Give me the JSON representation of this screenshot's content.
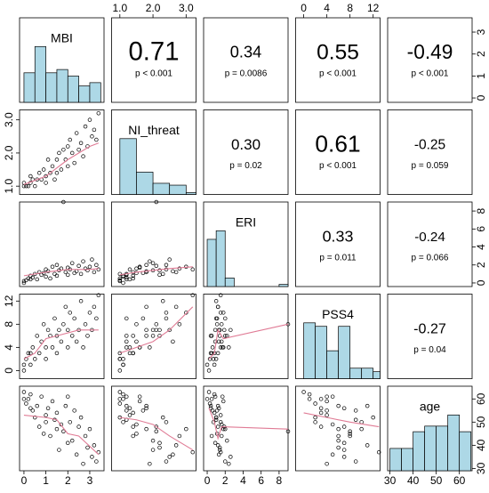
{
  "chart_data": {
    "type": "pairs",
    "hist_color": "#add8e6",
    "smooth_color": "#e07b95",
    "variables": [
      {
        "name": "MBI",
        "lim": [
          -0.2,
          3.65
        ],
        "ticks": [
          0,
          1,
          2,
          3
        ],
        "hist": {
          "bins": [
            0,
            0.5,
            1,
            1.5,
            2,
            2.5,
            3,
            3.5
          ],
          "counts": [
            9,
            17,
            9,
            10,
            8,
            5,
            6
          ]
        },
        "values": [
          0.1,
          0.2,
          0.3,
          0.4,
          0.5,
          0.6,
          0.7,
          0.8,
          0.9,
          1.0,
          1.0,
          1.1,
          1.2,
          1.3,
          1.4,
          1.5,
          1.5,
          1.6,
          1.7,
          1.8,
          1.9,
          2.0,
          2.0,
          2.1,
          2.2,
          2.3,
          2.4,
          2.5,
          2.6,
          2.7,
          2.8,
          2.9,
          3.0,
          3.1,
          3.2,
          3.3,
          3.4,
          0.0,
          0.0,
          0.3
        ]
      },
      {
        "name": "NI_threat",
        "lim": [
          0.75,
          3.3
        ],
        "ticks": [
          {
            "value": 1,
            "label": "1.0"
          },
          {
            "value": 2,
            "label": "2.0"
          },
          {
            "value": 3,
            "label": "3.0"
          }
        ],
        "hist": {
          "bins": [
            1,
            1.5,
            2,
            2.5,
            3,
            3.5
          ],
          "counts": [
            30,
            12,
            6,
            5,
            1
          ]
        },
        "values": [
          1.0,
          1.0,
          1.1,
          1.2,
          1.0,
          1.2,
          1.4,
          1.2,
          1.5,
          1.3,
          1.1,
          1.8,
          1.4,
          1.6,
          1.2,
          1.8,
          1.4,
          2.0,
          1.5,
          2.1,
          1.8,
          2.2,
          1.6,
          2.4,
          2.0,
          1.7,
          2.6,
          2.1,
          2.3,
          1.9,
          2.8,
          2.2,
          3.0,
          2.5,
          2.7,
          2.4,
          3.2,
          1.0,
          1.1,
          1.3
        ]
      },
      {
        "name": "ERI",
        "lim": [
          -0.4,
          9.0
        ],
        "ticks": [
          0,
          2,
          4,
          6,
          8
        ],
        "hist": {
          "bins": [
            0,
            1,
            2,
            3,
            4,
            5,
            6,
            7,
            8,
            9
          ],
          "counts": [
            22,
            26,
            4,
            0,
            0,
            0,
            0,
            0,
            1
          ]
        },
        "values": [
          0.3,
          0.5,
          0.8,
          0.6,
          1.0,
          0.4,
          1.2,
          0.9,
          1.1,
          1.5,
          0.7,
          1.3,
          0.5,
          1.8,
          1.0,
          2.0,
          0.8,
          1.4,
          1.6,
          9.0,
          1.2,
          0.9,
          1.7,
          1.5,
          2.2,
          1.1,
          1.3,
          1.9,
          1.0,
          2.4,
          1.6,
          1.4,
          1.8,
          2.6,
          1.2,
          2.0,
          1.5,
          0.2,
          0.0,
          0.4
        ]
      },
      {
        "name": "PSS4",
        "lim": [
          -1.4,
          13.2
        ],
        "ticks": [
          0,
          4,
          8,
          12
        ],
        "hist": {
          "bins": [
            0,
            2,
            4,
            6,
            8,
            10,
            12,
            14
          ],
          "counts": [
            16,
            15,
            8,
            15,
            3,
            3,
            2
          ]
        },
        "values": [
          2,
          3,
          1,
          4,
          2,
          6,
          3,
          5,
          8,
          4,
          2,
          7,
          6,
          4,
          9,
          6,
          3,
          7,
          5,
          8,
          11,
          7,
          4,
          10,
          6,
          9,
          5,
          7,
          12,
          4,
          8,
          6,
          10,
          7,
          11,
          9,
          13,
          0,
          1,
          3
        ]
      },
      {
        "name": "age",
        "lim": [
          29,
          65.5
        ],
        "ticks": [
          30,
          40,
          50,
          60
        ],
        "hist": {
          "bins": [
            30,
            35,
            40,
            45,
            50,
            55,
            60,
            65
          ],
          "counts": [
            4,
            4,
            7,
            8,
            8,
            10,
            7
          ]
        },
        "values": [
          58,
          60,
          62,
          55,
          52,
          57,
          48,
          61,
          45,
          53,
          50,
          56,
          44,
          59,
          51,
          47,
          54,
          38,
          49,
          46,
          57,
          41,
          61,
          50,
          42,
          55,
          36,
          48,
          52,
          32,
          44,
          39,
          47,
          35,
          40,
          33,
          37,
          63,
          60,
          56
        ]
      }
    ],
    "correlations": [
      [
        {
          "r": {
            "value": 0.71,
            "label": "0.71"
          },
          "p": "p < 0.001"
        },
        {
          "r": {
            "value": 0.34,
            "label": "0.34"
          },
          "p": "p = 0.0086"
        },
        {
          "r": {
            "value": 0.55,
            "label": "0.55"
          },
          "p": "p < 0.001"
        },
        {
          "r": {
            "value": -0.49,
            "label": "-0.49"
          },
          "p": "p < 0.001"
        }
      ],
      [
        {
          "r": {
            "value": 0.3,
            "label": "0.30"
          },
          "p": "p = 0.02"
        },
        {
          "r": {
            "value": 0.61,
            "label": "0.61"
          },
          "p": "p < 0.001"
        },
        {
          "r": {
            "value": -0.25,
            "label": "-0.25"
          },
          "p": "p = 0.059"
        }
      ],
      [
        {
          "r": {
            "value": 0.33,
            "label": "0.33"
          },
          "p": "p = 0.011"
        },
        {
          "r": {
            "value": -0.24,
            "label": "-0.24"
          },
          "p": "p = 0.066"
        }
      ],
      [
        {
          "r": {
            "value": -0.27,
            "label": "-0.27"
          },
          "p": "p = 0.04"
        }
      ]
    ],
    "smooth": [
      [
        {
          "x": [
            0,
            1,
            2,
            3,
            3.4
          ],
          "y": [
            1.05,
            1.3,
            1.8,
            2.2,
            2.3
          ]
        }
      ],
      [
        {
          "x": [
            0,
            1,
            2,
            3,
            3.4
          ],
          "y": [
            0.8,
            1.2,
            1.5,
            1.5,
            1.6
          ]
        },
        {
          "x": [
            1,
            1.5,
            2,
            2.5,
            3.2
          ],
          "y": [
            0.9,
            1.2,
            1.4,
            1.6,
            1.8
          ]
        }
      ],
      [
        {
          "x": [
            0,
            0.5,
            1,
            1.5,
            2.5,
            3.4
          ],
          "y": [
            2,
            3,
            5.5,
            6,
            7,
            7
          ]
        },
        {
          "x": [
            1,
            1.5,
            2,
            2.5,
            3.2
          ],
          "y": [
            3,
            4,
            5,
            7,
            11
          ]
        },
        {
          "x": [
            0.2,
            0.8,
            1.2,
            1.8,
            9
          ],
          "y": [
            2,
            3,
            7,
            5.5,
            8
          ]
        }
      ],
      [
        {
          "x": [
            0,
            1,
            1.5,
            2,
            2.5,
            3.4
          ],
          "y": [
            53,
            52,
            51,
            45,
            44,
            36
          ]
        },
        {
          "x": [
            1,
            1.5,
            2,
            2.5,
            3.2
          ],
          "y": [
            52,
            51,
            49,
            44,
            38
          ]
        },
        {
          "x": [
            0.2,
            0.8,
            1.2,
            1.6,
            9
          ],
          "y": [
            56,
            50,
            43,
            48,
            47
          ]
        },
        {
          "x": [
            0,
            4,
            8,
            13
          ],
          "y": [
            54,
            52,
            50,
            48
          ]
        }
      ]
    ]
  }
}
